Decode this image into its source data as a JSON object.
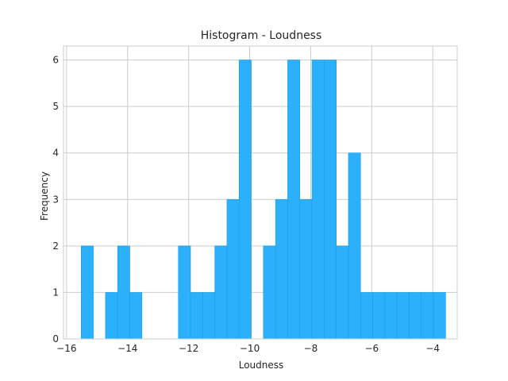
{
  "chart_data": {
    "type": "bar",
    "title": "Histogram - Loudness",
    "xlabel": "Loudness",
    "ylabel": "Frequency",
    "xlim": [
      -16.1,
      -3.2
    ],
    "ylim": [
      0,
      6.3
    ],
    "x_ticks": [
      -16,
      -14,
      -12,
      -10,
      -8,
      -6,
      -4
    ],
    "x_tick_labels": [
      "−16",
      "−14",
      "−12",
      "−10",
      "−8",
      "−6",
      "−4"
    ],
    "y_ticks": [
      0,
      1,
      2,
      3,
      4,
      5,
      6
    ],
    "y_tick_labels": [
      "0",
      "1",
      "2",
      "3",
      "4",
      "5",
      "6"
    ],
    "grid": true,
    "bar_color": "#2bb0fc",
    "bar_edge_color": "#1e9be0",
    "bin_start": -15.52,
    "bin_width": 0.398,
    "counts": [
      2,
      0,
      1,
      2,
      1,
      0,
      0,
      0,
      2,
      1,
      1,
      2,
      3,
      6,
      0,
      2,
      3,
      6,
      3,
      6,
      6,
      2,
      4,
      1,
      1,
      1,
      1,
      1,
      1,
      1
    ]
  }
}
